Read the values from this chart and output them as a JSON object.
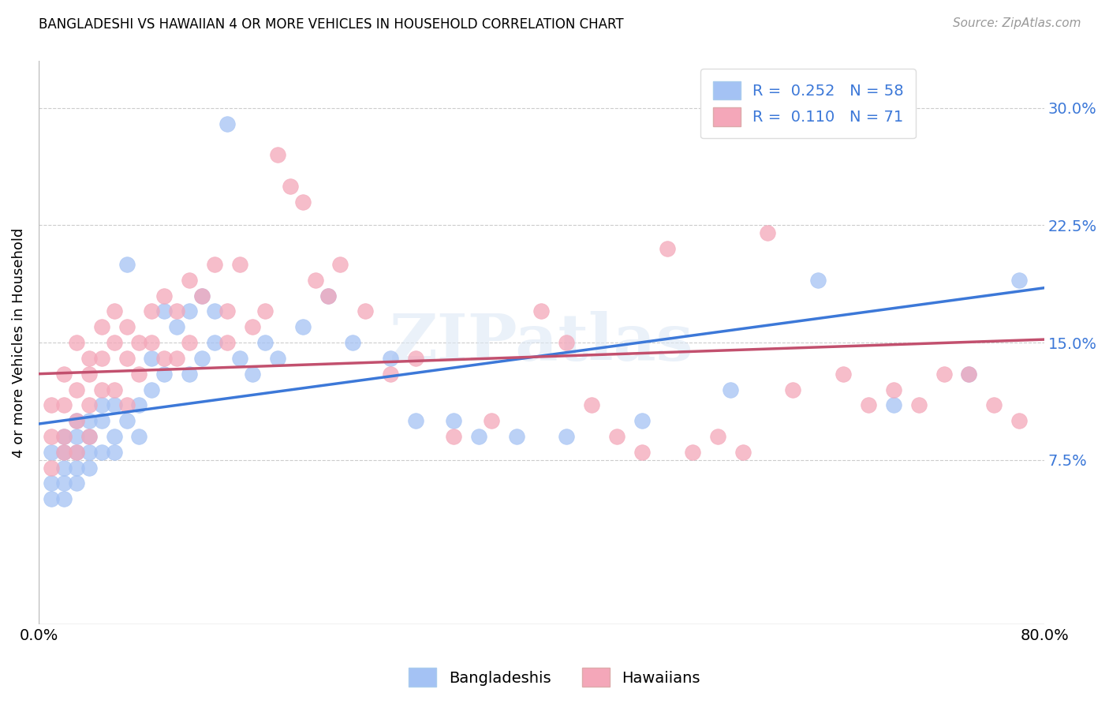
{
  "title": "BANGLADESHI VS HAWAIIAN 4 OR MORE VEHICLES IN HOUSEHOLD CORRELATION CHART",
  "source": "Source: ZipAtlas.com",
  "ylabel": "4 or more Vehicles in Household",
  "watermark": "ZIPatlas",
  "xlim": [
    0.0,
    0.8
  ],
  "ylim": [
    -0.03,
    0.33
  ],
  "yticks": [
    0.075,
    0.15,
    0.225,
    0.3
  ],
  "ytick_labels": [
    "7.5%",
    "15.0%",
    "22.5%",
    "30.0%"
  ],
  "xticks": [
    0.0,
    0.1,
    0.2,
    0.3,
    0.4,
    0.5,
    0.6,
    0.7,
    0.8
  ],
  "blue_color": "#a4c2f4",
  "pink_color": "#f4a7b9",
  "blue_line_color": "#3c78d8",
  "pink_line_color": "#c2506e",
  "legend_blue_label": "R =  0.252   N = 58",
  "legend_pink_label": "R =  0.110   N = 71",
  "legend_bottom_blue": "Bangladeshis",
  "legend_bottom_pink": "Hawaiians",
  "R_blue": 0.252,
  "N_blue": 58,
  "R_pink": 0.11,
  "N_pink": 71,
  "blue_x": [
    0.01,
    0.01,
    0.01,
    0.02,
    0.02,
    0.02,
    0.02,
    0.02,
    0.03,
    0.03,
    0.03,
    0.03,
    0.03,
    0.04,
    0.04,
    0.04,
    0.04,
    0.05,
    0.05,
    0.05,
    0.06,
    0.06,
    0.06,
    0.07,
    0.07,
    0.08,
    0.08,
    0.09,
    0.09,
    0.1,
    0.1,
    0.11,
    0.12,
    0.12,
    0.13,
    0.13,
    0.14,
    0.14,
    0.15,
    0.16,
    0.17,
    0.18,
    0.19,
    0.21,
    0.23,
    0.25,
    0.28,
    0.3,
    0.33,
    0.35,
    0.38,
    0.42,
    0.48,
    0.55,
    0.62,
    0.68,
    0.74,
    0.78
  ],
  "blue_y": [
    0.08,
    0.06,
    0.05,
    0.09,
    0.07,
    0.06,
    0.08,
    0.05,
    0.1,
    0.08,
    0.07,
    0.06,
    0.09,
    0.08,
    0.07,
    0.1,
    0.09,
    0.11,
    0.1,
    0.08,
    0.09,
    0.11,
    0.08,
    0.2,
    0.1,
    0.11,
    0.09,
    0.14,
    0.12,
    0.17,
    0.13,
    0.16,
    0.17,
    0.13,
    0.18,
    0.14,
    0.17,
    0.15,
    0.29,
    0.14,
    0.13,
    0.15,
    0.14,
    0.16,
    0.18,
    0.15,
    0.14,
    0.1,
    0.1,
    0.09,
    0.09,
    0.09,
    0.1,
    0.12,
    0.19,
    0.11,
    0.13,
    0.19
  ],
  "pink_x": [
    0.01,
    0.01,
    0.01,
    0.02,
    0.02,
    0.02,
    0.02,
    0.03,
    0.03,
    0.03,
    0.03,
    0.04,
    0.04,
    0.04,
    0.04,
    0.05,
    0.05,
    0.05,
    0.06,
    0.06,
    0.06,
    0.07,
    0.07,
    0.07,
    0.08,
    0.08,
    0.09,
    0.09,
    0.1,
    0.1,
    0.11,
    0.11,
    0.12,
    0.12,
    0.13,
    0.14,
    0.15,
    0.15,
    0.16,
    0.17,
    0.18,
    0.19,
    0.2,
    0.21,
    0.22,
    0.23,
    0.24,
    0.26,
    0.28,
    0.3,
    0.33,
    0.36,
    0.4,
    0.44,
    0.48,
    0.5,
    0.54,
    0.56,
    0.6,
    0.64,
    0.66,
    0.68,
    0.7,
    0.72,
    0.74,
    0.76,
    0.78,
    0.42,
    0.46,
    0.52,
    0.58
  ],
  "pink_y": [
    0.11,
    0.09,
    0.07,
    0.13,
    0.11,
    0.09,
    0.08,
    0.15,
    0.12,
    0.1,
    0.08,
    0.14,
    0.13,
    0.11,
    0.09,
    0.16,
    0.14,
    0.12,
    0.17,
    0.15,
    0.12,
    0.16,
    0.14,
    0.11,
    0.15,
    0.13,
    0.17,
    0.15,
    0.18,
    0.14,
    0.17,
    0.14,
    0.19,
    0.15,
    0.18,
    0.2,
    0.17,
    0.15,
    0.2,
    0.16,
    0.17,
    0.27,
    0.25,
    0.24,
    0.19,
    0.18,
    0.2,
    0.17,
    0.13,
    0.14,
    0.09,
    0.1,
    0.17,
    0.11,
    0.08,
    0.21,
    0.09,
    0.08,
    0.12,
    0.13,
    0.11,
    0.12,
    0.11,
    0.13,
    0.13,
    0.11,
    0.1,
    0.15,
    0.09,
    0.08,
    0.22
  ],
  "blue_line_x0": 0.0,
  "blue_line_y0": 0.098,
  "blue_line_x1": 0.8,
  "blue_line_y1": 0.185,
  "pink_line_x0": 0.0,
  "pink_line_y0": 0.13,
  "pink_line_x1": 0.8,
  "pink_line_y1": 0.152
}
